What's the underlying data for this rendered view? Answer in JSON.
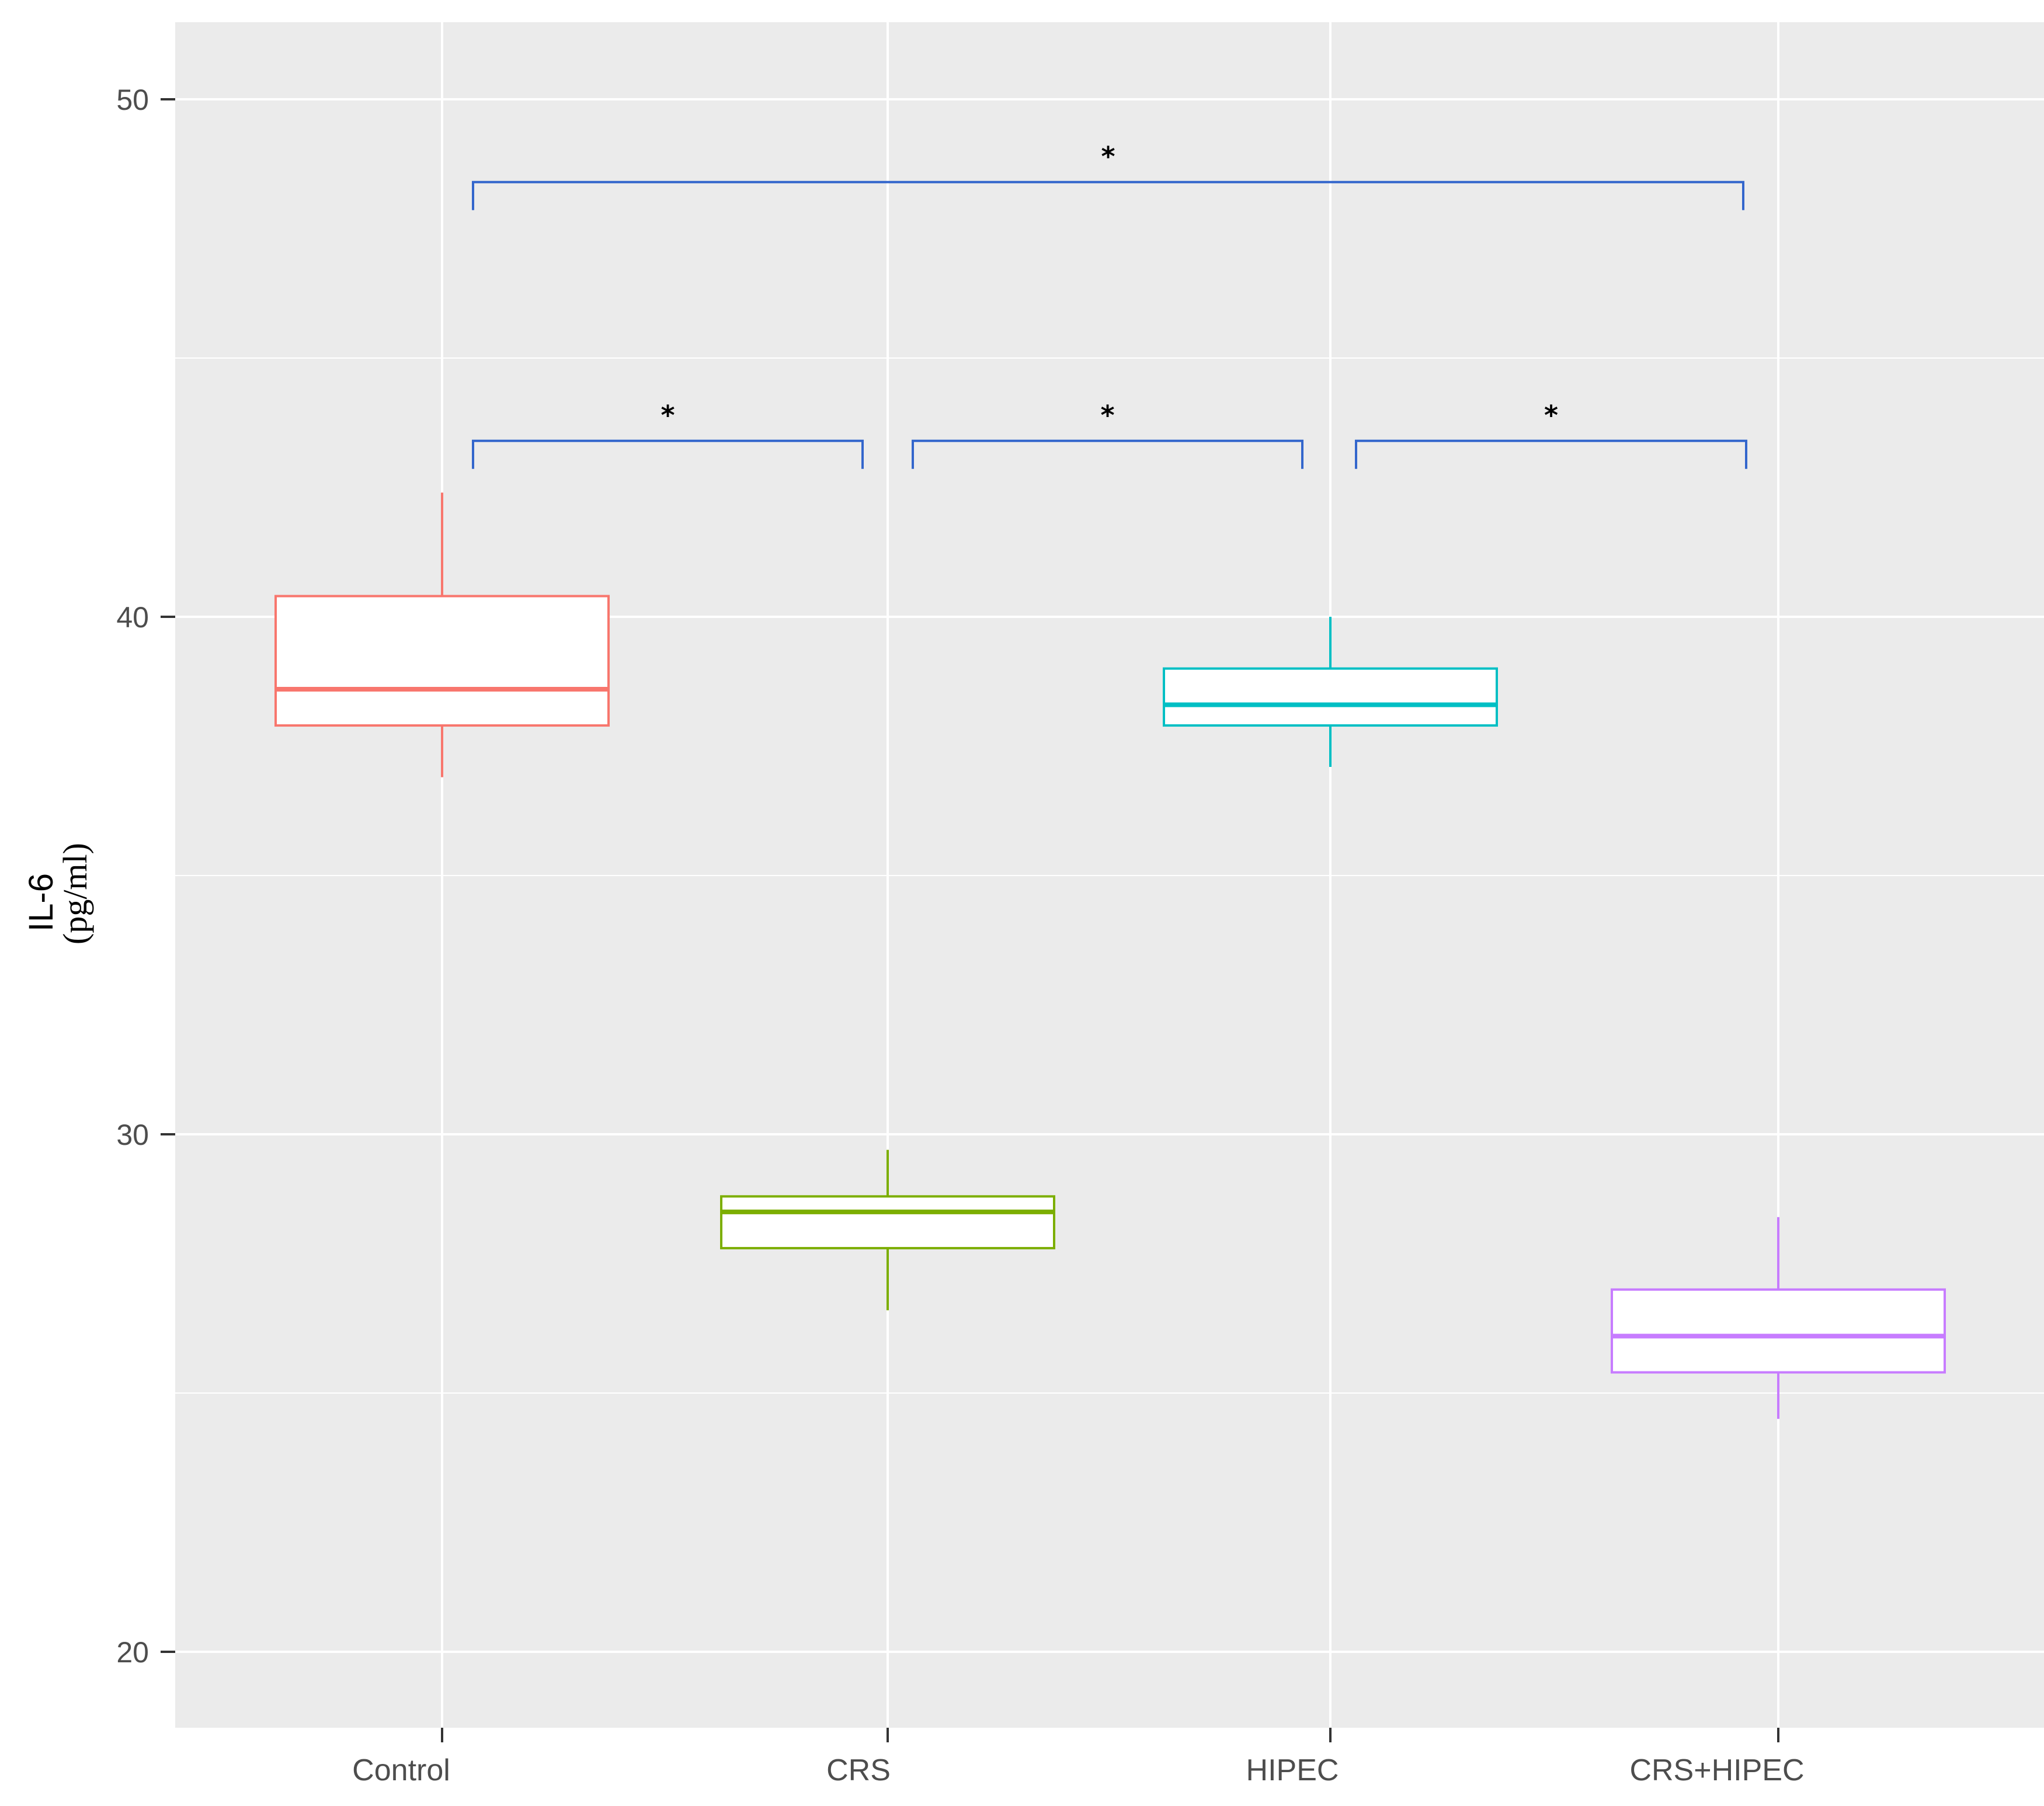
{
  "chart_data": {
    "type": "boxplot",
    "title": "",
    "xlabel": "",
    "ylabel": "IL-6",
    "ylabel_unit": "(pg/ml)",
    "categories": [
      "Control",
      "CRS",
      "HIPEC",
      "CRS+HIPEC"
    ],
    "ylim": [
      18.5,
      51.5
    ],
    "yticks": [
      20,
      30,
      40,
      50
    ],
    "grid": true,
    "legend": "none",
    "boxes": [
      {
        "category": "Control",
        "color": "#F8766D",
        "whisker_low": 36.9,
        "q1": 37.9,
        "median": 38.6,
        "q3": 40.4,
        "whisker_high": 42.4
      },
      {
        "category": "CRS",
        "color": "#7CAE00",
        "whisker_low": 26.6,
        "q1": 27.8,
        "median": 28.5,
        "q3": 28.8,
        "whisker_high": 29.7
      },
      {
        "category": "HIPEC",
        "color": "#00BFC4",
        "whisker_low": 37.1,
        "q1": 37.9,
        "median": 38.3,
        "q3": 39.0,
        "whisker_high": 40.0
      },
      {
        "category": "CRS+HIPEC",
        "color": "#C77CFF",
        "whisker_low": 24.5,
        "q1": 25.4,
        "median": 26.1,
        "q3": 27.0,
        "whisker_high": 28.4
      }
    ],
    "comparisons": [
      {
        "from": "Control",
        "to": "CRS+HIPEC",
        "label": "*",
        "y": 48.4
      },
      {
        "from": "Control",
        "to": "CRS",
        "label": "*",
        "y": 43.4
      },
      {
        "from": "CRS",
        "to": "HIPEC",
        "label": "*",
        "y": 43.4
      },
      {
        "from": "HIPEC",
        "to": "CRS+HIPEC",
        "label": "*",
        "y": 43.4
      }
    ],
    "comparison_color": "#3366CC"
  }
}
